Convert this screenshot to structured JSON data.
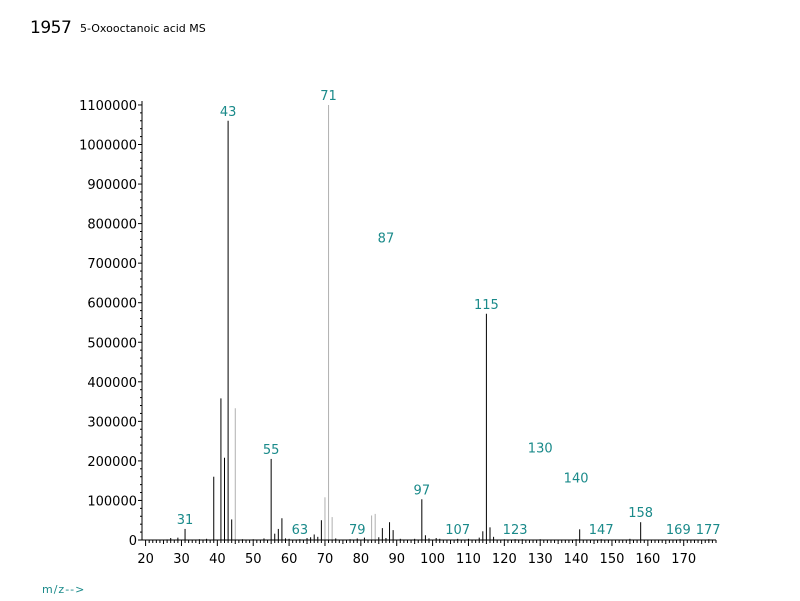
{
  "header": {
    "id": "1957",
    "title": "5-Oxooctanoic acid  MS"
  },
  "x_unit_label": "m/z-->",
  "colors": {
    "peak": "#000000",
    "peak_faint": "#b0b0b0",
    "label": "#1a8a8a",
    "axis": "#000000"
  },
  "chart_data": {
    "type": "bar",
    "xlim": [
      19,
      179
    ],
    "ylim": [
      0,
      1110000
    ],
    "x_ticks": [
      20,
      30,
      40,
      50,
      60,
      70,
      80,
      90,
      100,
      110,
      120,
      130,
      140,
      150,
      160,
      170
    ],
    "y_ticks": [
      0,
      100000,
      200000,
      300000,
      400000,
      500000,
      600000,
      700000,
      800000,
      900000,
      1000000,
      1100000
    ],
    "peaks": [
      {
        "x": 26,
        "y": 1500
      },
      {
        "x": 27,
        "y": 5000
      },
      {
        "x": 29,
        "y": 6000
      },
      {
        "x": 31,
        "y": 28000
      },
      {
        "x": 35,
        "y": 2000
      },
      {
        "x": 37,
        "y": 3000
      },
      {
        "x": 39,
        "y": 160000
      },
      {
        "x": 41,
        "y": 358000
      },
      {
        "x": 42,
        "y": 208000
      },
      {
        "x": 43,
        "y": 1060000
      },
      {
        "x": 44,
        "y": 52000
      },
      {
        "x": 45,
        "y": 333000,
        "faint": true
      },
      {
        "x": 47,
        "y": 2000
      },
      {
        "x": 50,
        "y": 2000
      },
      {
        "x": 53,
        "y": 4000
      },
      {
        "x": 55,
        "y": 205000
      },
      {
        "x": 56,
        "y": 16000
      },
      {
        "x": 57,
        "y": 28000
      },
      {
        "x": 58,
        "y": 55000
      },
      {
        "x": 59,
        "y": 4000
      },
      {
        "x": 60,
        "y": 3000
      },
      {
        "x": 63,
        "y": 2000
      },
      {
        "x": 65,
        "y": 5000
      },
      {
        "x": 66,
        "y": 7000
      },
      {
        "x": 67,
        "y": 14000
      },
      {
        "x": 68,
        "y": 8000
      },
      {
        "x": 69,
        "y": 50000
      },
      {
        "x": 70,
        "y": 108000,
        "faint": true
      },
      {
        "x": 71,
        "y": 1100000,
        "faint": true
      },
      {
        "x": 72,
        "y": 58000,
        "faint": true
      },
      {
        "x": 73,
        "y": 4000
      },
      {
        "x": 77,
        "y": 2000
      },
      {
        "x": 79,
        "y": 4000
      },
      {
        "x": 81,
        "y": 6000
      },
      {
        "x": 83,
        "y": 62000,
        "faint": true
      },
      {
        "x": 84,
        "y": 66000,
        "faint": true
      },
      {
        "x": 85,
        "y": 7000
      },
      {
        "x": 86,
        "y": 30000
      },
      {
        "x": 87,
        "y": 5000
      },
      {
        "x": 88,
        "y": 45000
      },
      {
        "x": 89,
        "y": 25000
      },
      {
        "x": 91,
        "y": 3000
      },
      {
        "x": 95,
        "y": 3000
      },
      {
        "x": 97,
        "y": 103000
      },
      {
        "x": 98,
        "y": 12000
      },
      {
        "x": 99,
        "y": 4000
      },
      {
        "x": 101,
        "y": 5000
      },
      {
        "x": 102,
        "y": 3000
      },
      {
        "x": 107,
        "y": 3000
      },
      {
        "x": 110,
        "y": 3000
      },
      {
        "x": 113,
        "y": 6000
      },
      {
        "x": 114,
        "y": 22000
      },
      {
        "x": 115,
        "y": 572000
      },
      {
        "x": 116,
        "y": 32000
      },
      {
        "x": 117,
        "y": 8000
      },
      {
        "x": 120,
        "y": 2000
      },
      {
        "x": 123,
        "y": 2000
      },
      {
        "x": 125,
        "y": 2000
      },
      {
        "x": 130,
        "y": 2000
      },
      {
        "x": 140,
        "y": 2000
      },
      {
        "x": 141,
        "y": 27000
      },
      {
        "x": 147,
        "y": 2000
      },
      {
        "x": 155,
        "y": 3000
      },
      {
        "x": 158,
        "y": 45000
      },
      {
        "x": 169,
        "y": 2000
      },
      {
        "x": 177,
        "y": 2000
      }
    ],
    "annotations": [
      {
        "text": "31",
        "x": 31,
        "y": 28000
      },
      {
        "text": "43",
        "x": 43,
        "y": 1060000
      },
      {
        "text": "55",
        "x": 55,
        "y": 205000
      },
      {
        "text": "63",
        "x": 63,
        "y": 2000
      },
      {
        "text": "71",
        "x": 71,
        "y": 1100000
      },
      {
        "text": "79",
        "x": 79,
        "y": 2000
      },
      {
        "text": "87",
        "x": 87,
        "y": 740000
      },
      {
        "text": "97",
        "x": 97,
        "y": 103000
      },
      {
        "text": "107",
        "x": 107,
        "y": 2000
      },
      {
        "text": "115",
        "x": 115,
        "y": 572000
      },
      {
        "text": "123",
        "x": 123,
        "y": 2000
      },
      {
        "text": "130",
        "x": 130,
        "y": 208000
      },
      {
        "text": "140",
        "x": 140,
        "y": 133000
      },
      {
        "text": "147",
        "x": 147,
        "y": 2000
      },
      {
        "text": "158",
        "x": 158,
        "y": 45000
      },
      {
        "text": "169",
        "x": 168.5,
        "y": 2000
      },
      {
        "text": "177",
        "x": 176.8,
        "y": 2000
      }
    ]
  }
}
